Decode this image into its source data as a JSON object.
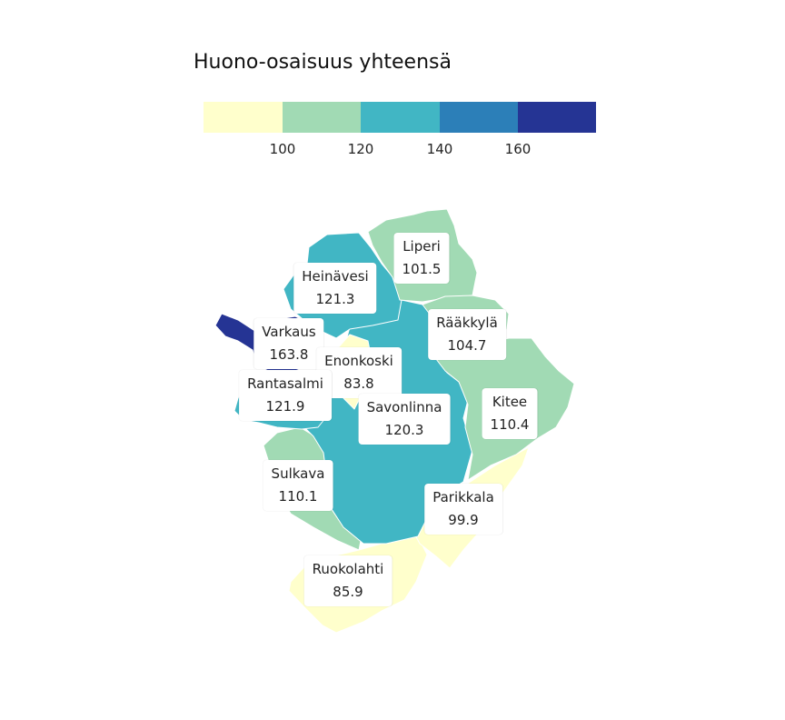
{
  "title": "Huono-osaisuus yhteensä",
  "legend": {
    "colors": [
      "#ffffcc",
      "#a1dab4",
      "#41b6c4",
      "#2c7fb8",
      "#253494"
    ],
    "ticks": [
      "100",
      "120",
      "140",
      "160"
    ]
  },
  "regions": [
    {
      "name": "Liperi",
      "value": "101.5",
      "color": "#a1dab4"
    },
    {
      "name": "Heinävesi",
      "value": "121.3",
      "color": "#41b6c4"
    },
    {
      "name": "Rääkkylä",
      "value": "104.7",
      "color": "#a1dab4"
    },
    {
      "name": "Varkaus",
      "value": "163.8",
      "color": "#253494"
    },
    {
      "name": "Enonkoski",
      "value": "83.8",
      "color": "#ffffcc"
    },
    {
      "name": "Rantasalmi",
      "value": "121.9",
      "color": "#41b6c4"
    },
    {
      "name": "Savonlinna",
      "value": "120.3",
      "color": "#41b6c4"
    },
    {
      "name": "Kitee",
      "value": "110.4",
      "color": "#a1dab4"
    },
    {
      "name": "Sulkava",
      "value": "110.1",
      "color": "#a1dab4"
    },
    {
      "name": "Parikkala",
      "value": "99.9",
      "color": "#ffffcc"
    },
    {
      "name": "Ruokolahti",
      "value": "85.9",
      "color": "#ffffcc"
    }
  ]
}
